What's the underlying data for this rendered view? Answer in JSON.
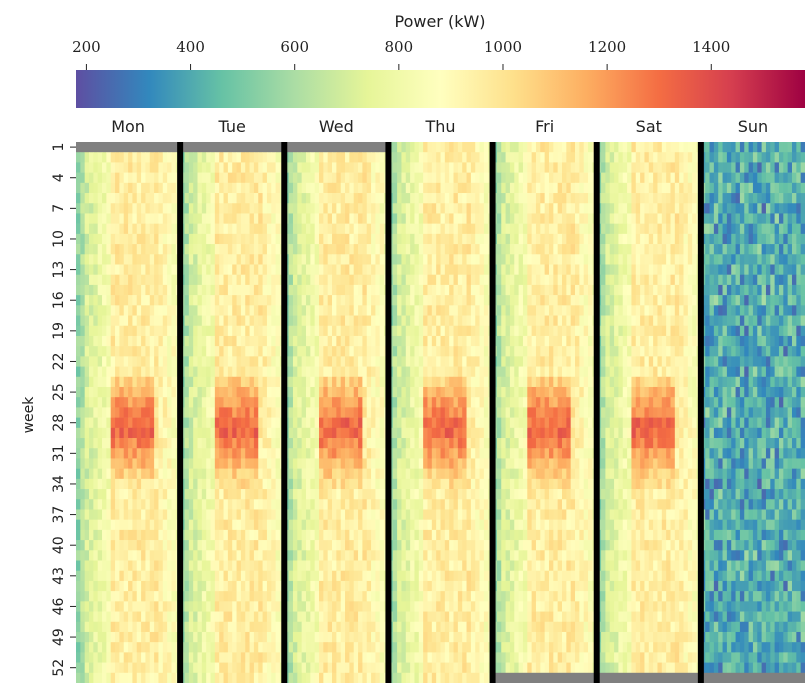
{
  "chart_data": {
    "type": "heatmap",
    "colorbar": {
      "title": "Power (kW)",
      "ticks": [
        "200",
        "400",
        "600",
        "800",
        "1000",
        "1200",
        "1400"
      ],
      "range": [
        180,
        1580
      ],
      "colormap": [
        "#5e4fa2",
        "#3288bd",
        "#66c2a5",
        "#abdda4",
        "#e6f598",
        "#ffffbf",
        "#fee08b",
        "#fdae61",
        "#f46d43",
        "#d53e4f",
        "#9e0142"
      ]
    },
    "columns": [
      "Mon",
      "Tue",
      "Wed",
      "Thu",
      "Fri",
      "Sat",
      "Sun"
    ],
    "ylabel": "week",
    "week_ticks": [
      "1",
      "4",
      "7",
      "10",
      "13",
      "16",
      "19",
      "22",
      "25",
      "28",
      "31",
      "34",
      "37",
      "40",
      "43",
      "46",
      "49",
      "52"
    ],
    "weeks": 52,
    "missing_color": "#808080",
    "separator_color": "#000000",
    "missing_cells": [
      {
        "column": "Mon",
        "week": 1
      },
      {
        "column": "Tue",
        "week": 1
      },
      {
        "column": "Wed",
        "week": 1
      },
      {
        "column": "Fri",
        "week": 53
      },
      {
        "column": "Sat",
        "week": 53
      },
      {
        "column": "Sun",
        "week": 53
      }
    ],
    "notes": [
      "Thu",
      "Fri",
      "Sat",
      "Sun"
    ],
    "approx_daily_profile_kw": {
      "night": 600,
      "shoulder": 850,
      "midday": 980,
      "summer_peak_weeks_27_30": 1350,
      "sunday_typical": 400
    }
  }
}
